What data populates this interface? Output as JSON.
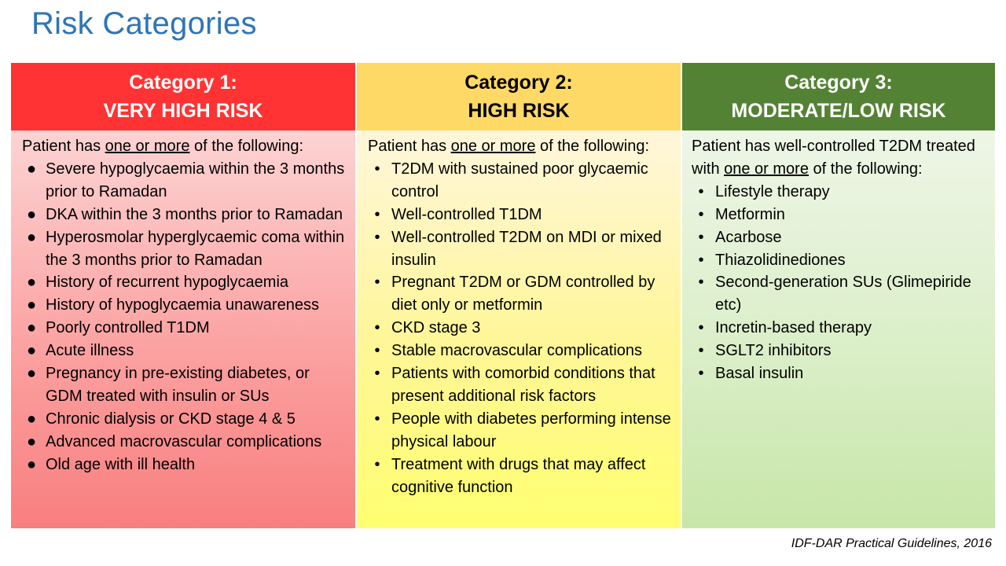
{
  "title": "Risk Categories",
  "citation": "IDF-DAR Practical Guidelines, 2016",
  "colors": {
    "title": "#2e75b6",
    "category1_header": "#ff3333",
    "category2_header": "#ffd966",
    "category3_header": "#548235"
  },
  "categories": [
    {
      "heading_line1": "Category 1:",
      "heading_line2": "VERY HIGH RISK",
      "intro_pre": "Patient has ",
      "intro_underlined": "one or more",
      "intro_post": " of the following:",
      "items": [
        "Severe hypoglycaemia within the 3 months prior to Ramadan",
        "DKA within the 3 months prior to Ramadan",
        "Hyperosmolar hyperglycaemic coma within the 3 months prior to Ramadan",
        "History of recurrent hypoglycaemia",
        "History of hypoglycaemia unawareness",
        "Poorly controlled T1DM",
        "Acute illness",
        "Pregnancy in pre-existing diabetes, or GDM treated with insulin or SUs",
        "Chronic dialysis or CKD stage 4 & 5",
        "Advanced macrovascular complications",
        "Old age with ill health"
      ]
    },
    {
      "heading_line1": "Category 2:",
      "heading_line2": "HIGH RISK",
      "intro_pre": "Patient has ",
      "intro_underlined": "one or more",
      "intro_post": " of the following:",
      "items": [
        "T2DM with sustained poor glycaemic control",
        "Well-controlled T1DM",
        "Well-controlled T2DM on MDI or mixed insulin",
        "Pregnant T2DM or GDM controlled by diet only or metformin",
        "CKD stage 3",
        "Stable macrovascular complications",
        "Patients with comorbid conditions that present additional risk factors",
        "People with diabetes performing intense physical labour",
        "Treatment with drugs that may affect cognitive function"
      ]
    },
    {
      "heading_line1": "Category 3:",
      "heading_line2": "MODERATE/LOW RISK",
      "intro_pre": "Patient has well-controlled T2DM treated with ",
      "intro_underlined": "one or more",
      "intro_post": " of the following:",
      "items": [
        "Lifestyle therapy",
        "Metformin",
        "Acarbose",
        "Thiazolidinediones",
        "Second-generation SUs (Glimepiride etc)",
        "Incretin-based therapy",
        "SGLT2 inhibitors",
        "Basal insulin"
      ]
    }
  ]
}
